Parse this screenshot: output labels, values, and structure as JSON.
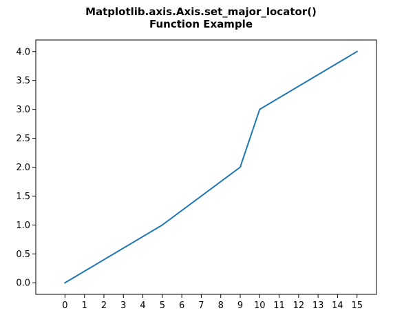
{
  "chart_data": {
    "type": "line",
    "title_lines": [
      "Matplotlib.axis.Axis.set_major_locator()",
      "Function Example"
    ],
    "xlabel": "",
    "ylabel": "",
    "xlim": [
      -1.5,
      16
    ],
    "ylim": [
      -0.2,
      4.2
    ],
    "xticks": [
      0,
      1,
      2,
      3,
      4,
      5,
      6,
      7,
      8,
      9,
      10,
      11,
      12,
      13,
      14,
      15
    ],
    "xtick_labels": [
      "0",
      "1",
      "2",
      "3",
      "4",
      "5",
      "6",
      "7",
      "8",
      "9",
      "10",
      "11",
      "12",
      "13",
      "14",
      "15"
    ],
    "yticks": [
      0.0,
      0.5,
      1.0,
      1.5,
      2.0,
      2.5,
      3.0,
      3.5,
      4.0
    ],
    "ytick_labels": [
      "0.0",
      "0.5",
      "1.0",
      "1.5",
      "2.0",
      "2.5",
      "3.0",
      "3.5",
      "4.0"
    ],
    "grid": false,
    "series": [
      {
        "color": "#1f77b4",
        "x": [
          0,
          5,
          9,
          10,
          15
        ],
        "y": [
          0.0,
          1.0,
          2.0,
          3.0,
          4.0
        ]
      }
    ]
  }
}
